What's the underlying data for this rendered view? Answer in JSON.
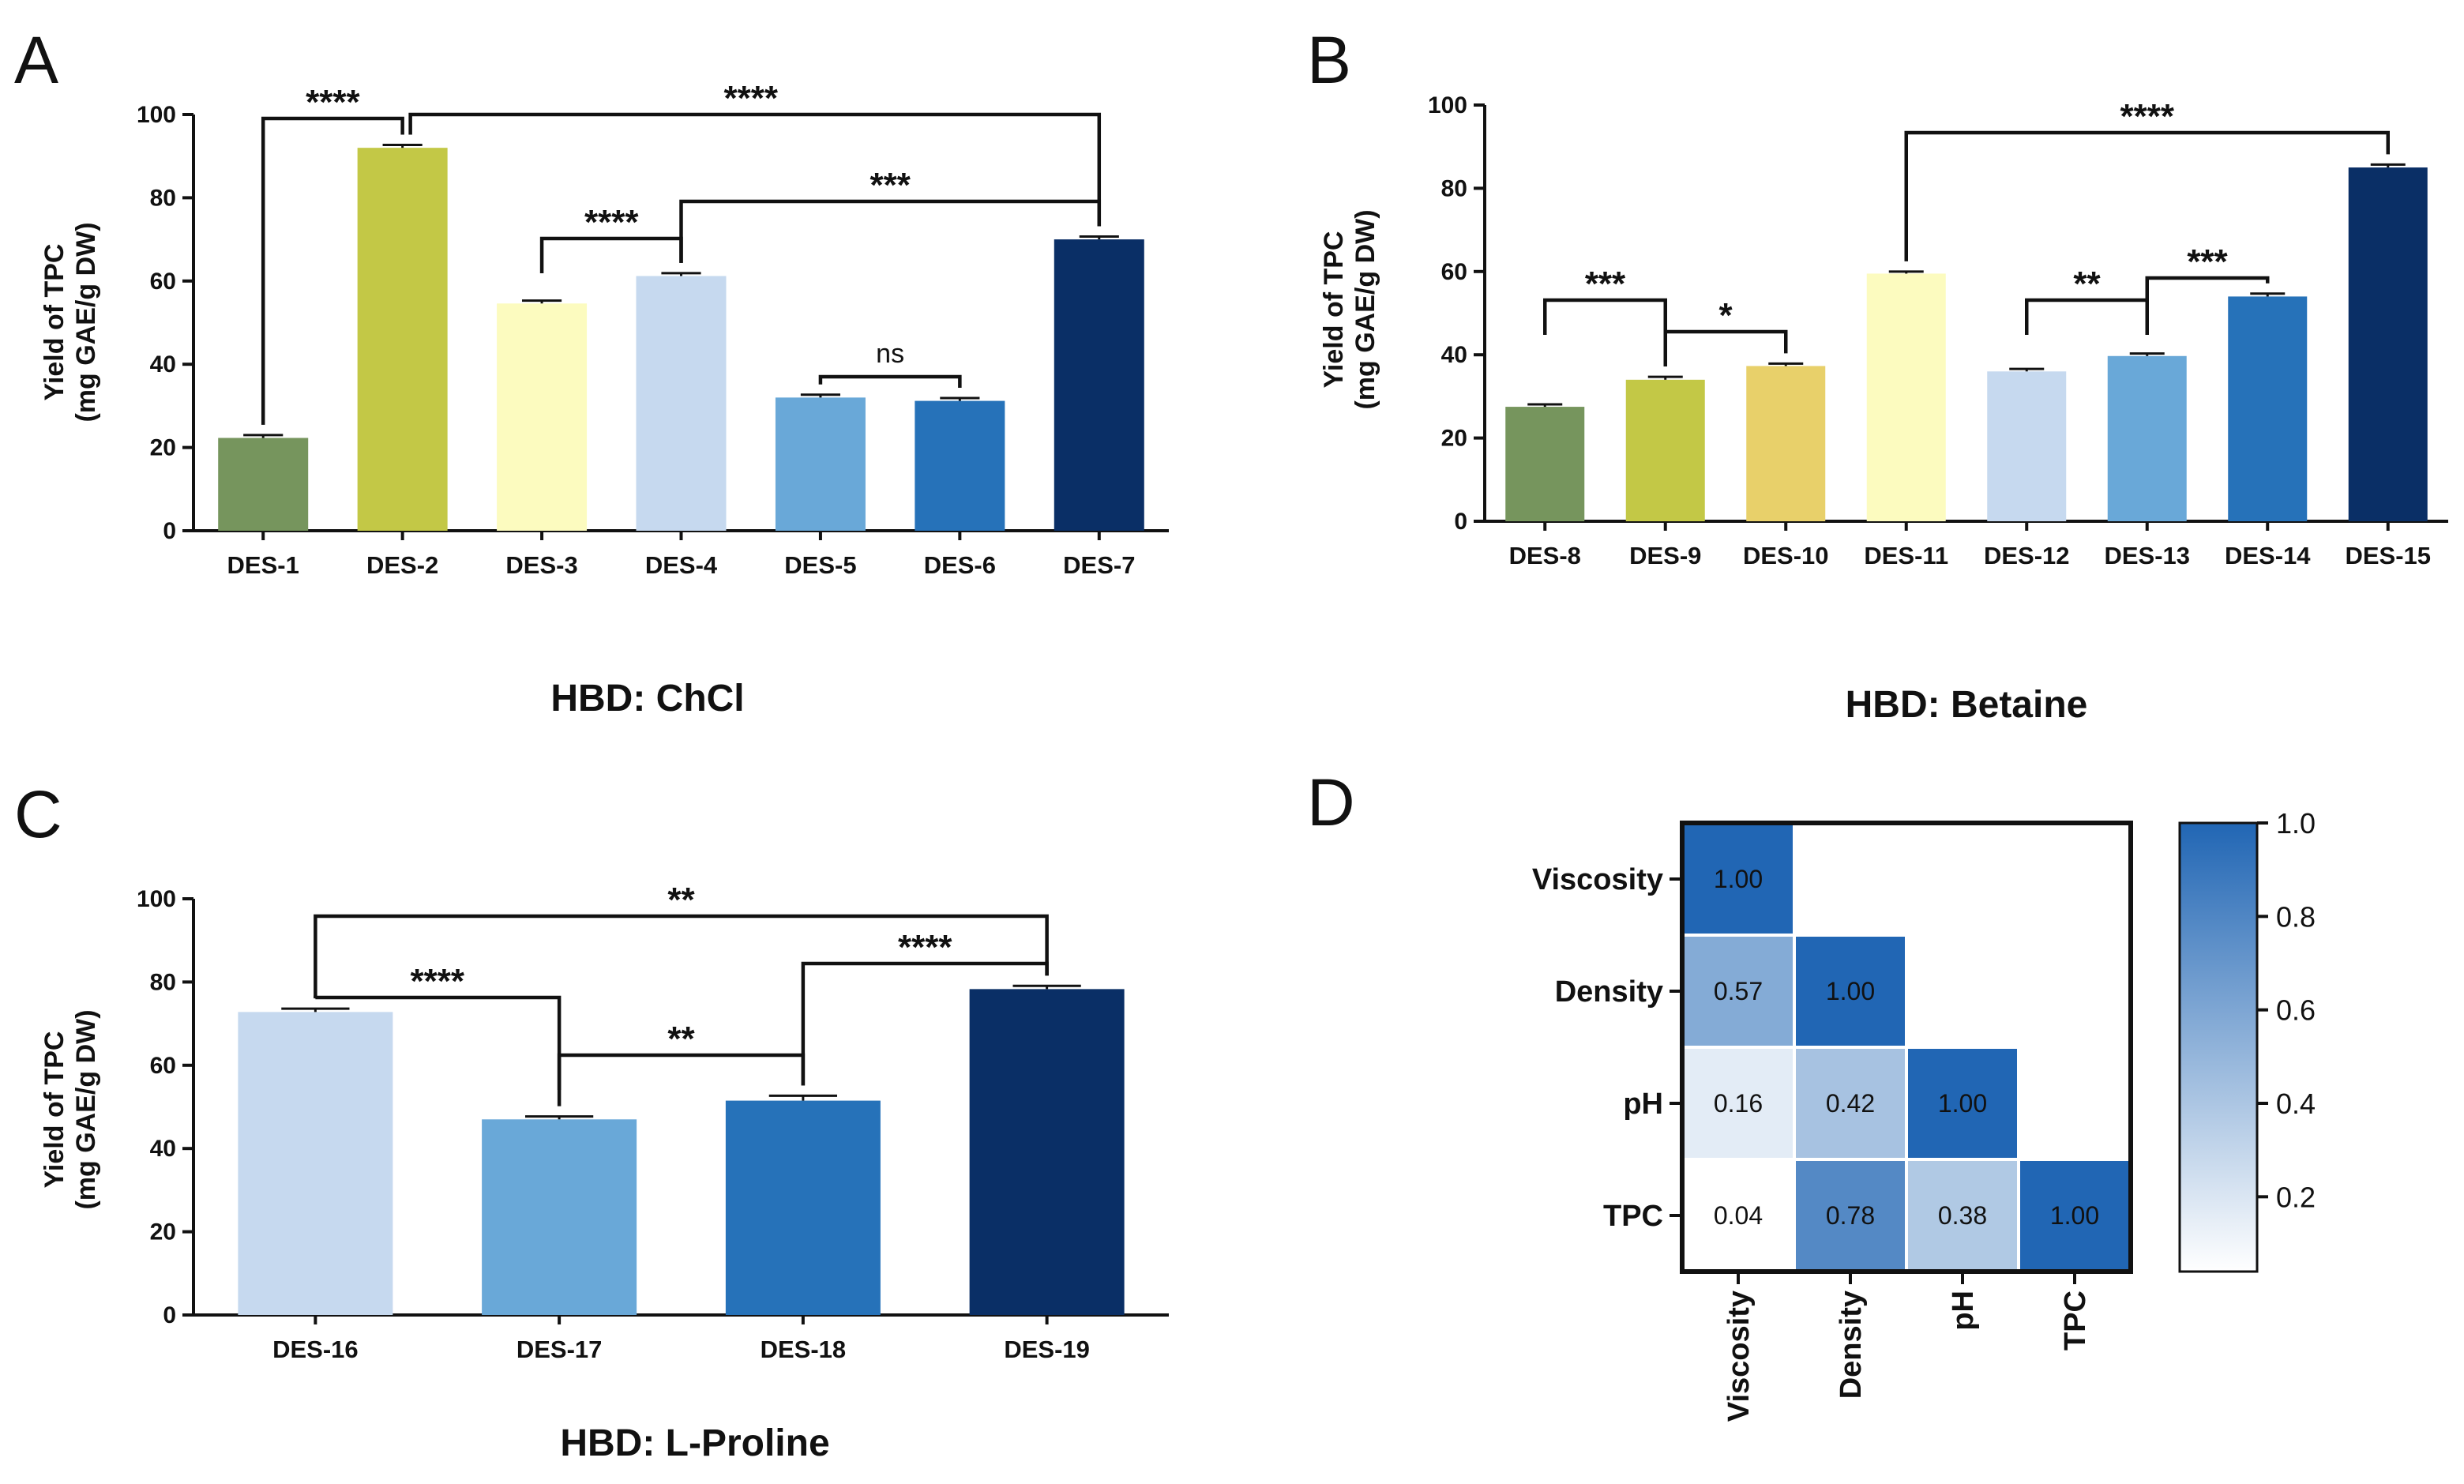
{
  "chart_data": [
    {
      "panel": "A",
      "type": "bar",
      "ylabel_line1": "Yield of TPC",
      "ylabel_line2": "(mg GAE/g DW)",
      "ylim": [
        0,
        100
      ],
      "yticks": [
        0,
        20,
        40,
        60,
        80,
        100
      ],
      "categories": [
        "DES-1",
        "DES-2",
        "DES-3",
        "DES-4",
        "DES-5",
        "DES-6",
        "DES-7"
      ],
      "values": [
        22.3,
        92.0,
        54.6,
        61.2,
        32.0,
        31.2,
        70.0
      ],
      "errors": [
        0.5,
        0.5,
        0.5,
        0.5,
        0.5,
        0.5,
        0.5
      ],
      "colors": [
        "#76955d",
        "#c3c846",
        "#fcfbbf",
        "#c6d9ef",
        "#69a8d8",
        "#2672b9",
        "#0a2f66"
      ],
      "caption": "HBD: ChCl",
      "significance": [
        {
          "from": 0,
          "to": 1,
          "label": "****"
        },
        {
          "from": 1,
          "to": 6,
          "label": "****"
        },
        {
          "from": 2,
          "to": 3,
          "label": "****"
        },
        {
          "from": 3,
          "to": 6,
          "label": "***"
        },
        {
          "from": 4,
          "to": 5,
          "label": "ns"
        }
      ]
    },
    {
      "panel": "B",
      "type": "bar",
      "ylabel_line1": "Yield of TPC",
      "ylabel_line2": "(mg GAE/g DW)",
      "ylim": [
        0,
        100
      ],
      "yticks": [
        0,
        20,
        40,
        60,
        80,
        100
      ],
      "categories": [
        "DES-8",
        "DES-9",
        "DES-10",
        "DES-11",
        "DES-12",
        "DES-13",
        "DES-14",
        "DES-15"
      ],
      "values": [
        27.5,
        34.0,
        37.3,
        59.5,
        36.0,
        39.7,
        54.0,
        85.0
      ],
      "errors": [
        0.4,
        0.5,
        0.4,
        0.3,
        0.4,
        0.4,
        0.5,
        0.5
      ],
      "colors": [
        "#76955d",
        "#c3c846",
        "#e8d06a",
        "#fcfbbf",
        "#c6d9ef",
        "#69a8d8",
        "#2672b9",
        "#0a2f66"
      ],
      "caption": "HBD: Betaine",
      "significance": [
        {
          "from": 0,
          "to": 1,
          "label": "***"
        },
        {
          "from": 1,
          "to": 2,
          "label": "*"
        },
        {
          "from": 3,
          "to": 7,
          "label": "****"
        },
        {
          "from": 4,
          "to": 5,
          "label": "**"
        },
        {
          "from": 5,
          "to": 6,
          "label": "***"
        }
      ]
    },
    {
      "panel": "C",
      "type": "bar",
      "ylabel_line1": "Yield of TPC",
      "ylabel_line2": "(mg GAE/g DW)",
      "ylim": [
        0,
        100
      ],
      "yticks": [
        0,
        20,
        40,
        60,
        80,
        100
      ],
      "categories": [
        "DES-16",
        "DES-17",
        "DES-18",
        "DES-19"
      ],
      "values": [
        72.8,
        47.0,
        51.5,
        78.3
      ],
      "errors": [
        0.6,
        0.5,
        1.0,
        0.6
      ],
      "colors": [
        "#c6d9ef",
        "#69a8d8",
        "#2672b9",
        "#0a2f66"
      ],
      "caption": "HBD: L-Proline",
      "significance": [
        {
          "from": 0,
          "to": 3,
          "label": "**"
        },
        {
          "from": 0,
          "to": 1,
          "label": "****"
        },
        {
          "from": 1,
          "to": 2,
          "label": "**"
        },
        {
          "from": 2,
          "to": 3,
          "label": "****"
        }
      ]
    },
    {
      "panel": "D",
      "type": "heatmap",
      "labels": [
        "Viscosity",
        "Density",
        "pH",
        "TPC"
      ],
      "matrix": [
        [
          1.0,
          null,
          null,
          null
        ],
        [
          0.57,
          1.0,
          null,
          null
        ],
        [
          0.16,
          0.42,
          1.0,
          null
        ],
        [
          0.04,
          0.78,
          0.38,
          1.0
        ]
      ],
      "cell_text": [
        [
          "1.00",
          "",
          "",
          ""
        ],
        [
          "0.57",
          "1.00",
          "",
          ""
        ],
        [
          "0.16",
          "0.42",
          "1.00",
          ""
        ],
        [
          "0.04",
          "0.78",
          "0.38",
          "1.00"
        ]
      ],
      "colorbar": {
        "range": [
          0.04,
          1.0
        ],
        "ticks": [
          "0.2",
          "0.4",
          "0.6",
          "0.8",
          "1.0"
        ],
        "tick_values": [
          0.2,
          0.4,
          0.6,
          0.8,
          1.0
        ],
        "low_color": "#ffffff",
        "high_color": "#2166b4"
      }
    }
  ]
}
